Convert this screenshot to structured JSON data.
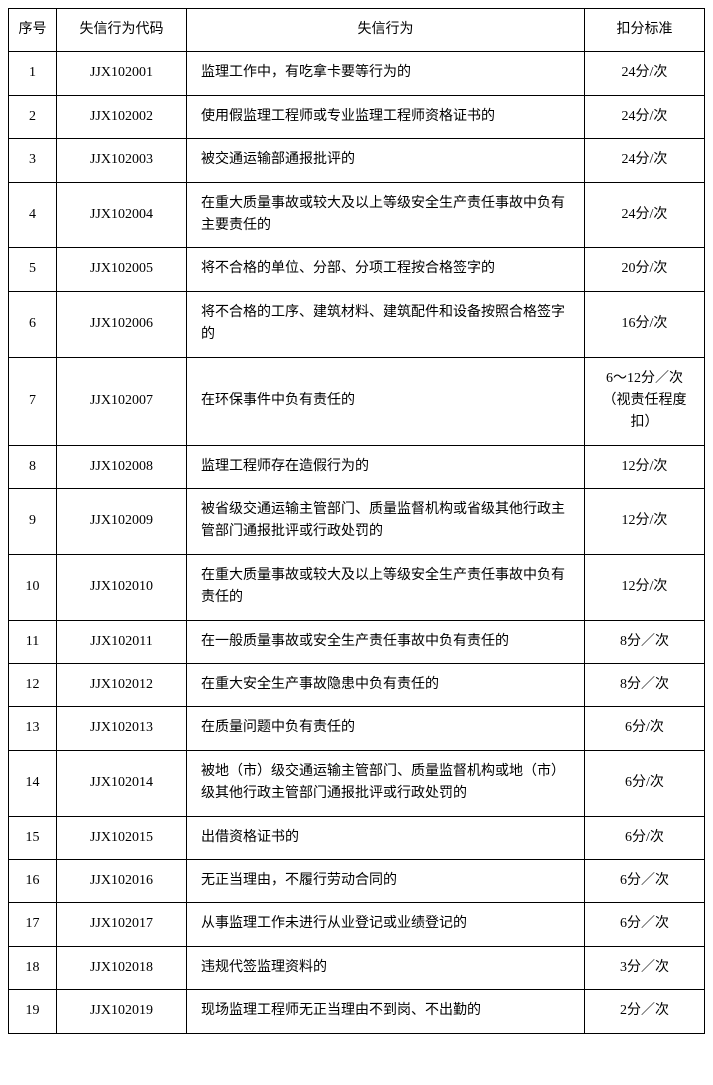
{
  "table": {
    "headers": {
      "seq": "序号",
      "code": "失信行为代码",
      "behavior": "失信行为",
      "standard": "扣分标准"
    },
    "rows": [
      {
        "seq": "1",
        "code": "JJX102001",
        "behavior": "监理工作中，有吃拿卡要等行为的",
        "standard": "24分/次"
      },
      {
        "seq": "2",
        "code": "JJX102002",
        "behavior": "使用假监理工程师或专业监理工程师资格证书的",
        "standard": "24分/次"
      },
      {
        "seq": "3",
        "code": "JJX102003",
        "behavior": "被交通运输部通报批评的",
        "standard": "24分/次"
      },
      {
        "seq": "4",
        "code": "JJX102004",
        "behavior": "在重大质量事故或较大及以上等级安全生产责任事故中负有主要责任的",
        "standard": "24分/次"
      },
      {
        "seq": "5",
        "code": "JJX102005",
        "behavior": "将不合格的单位、分部、分项工程按合格签字的",
        "standard": "20分/次"
      },
      {
        "seq": "6",
        "code": "JJX102006",
        "behavior": "将不合格的工序、建筑材料、建筑配件和设备按照合格签字的",
        "standard": "16分/次"
      },
      {
        "seq": "7",
        "code": "JJX102007",
        "behavior": "在环保事件中负有责任的",
        "standard": "6～12分／次（视责任程度扣）"
      },
      {
        "seq": "8",
        "code": "JJX102008",
        "behavior": "监理工程师存在造假行为的",
        "standard": "12分/次"
      },
      {
        "seq": "9",
        "code": "JJX102009",
        "behavior": "被省级交通运输主管部门、质量监督机构或省级其他行政主管部门通报批评或行政处罚的",
        "standard": "12分/次"
      },
      {
        "seq": "10",
        "code": "JJX102010",
        "behavior": "在重大质量事故或较大及以上等级安全生产责任事故中负有责任的",
        "standard": "12分/次"
      },
      {
        "seq": "11",
        "code": "JJX102011",
        "behavior": "在一般质量事故或安全生产责任事故中负有责任的",
        "standard": "8分／次"
      },
      {
        "seq": "12",
        "code": "JJX102012",
        "behavior": "在重大安全生产事故隐患中负有责任的",
        "standard": "8分／次"
      },
      {
        "seq": "13",
        "code": "JJX102013",
        "behavior": "在质量问题中负有责任的",
        "standard": "6分/次"
      },
      {
        "seq": "14",
        "code": "JJX102014",
        "behavior": "被地（市）级交通运输主管部门、质量监督机构或地（市）级其他行政主管部门通报批评或行政处罚的",
        "standard": "6分/次"
      },
      {
        "seq": "15",
        "code": "JJX102015",
        "behavior": "出借资格证书的",
        "standard": "6分/次"
      },
      {
        "seq": "16",
        "code": "JJX102016",
        "behavior": "无正当理由，不履行劳动合同的",
        "standard": "6分／次"
      },
      {
        "seq": "17",
        "code": "JJX102017",
        "behavior": "从事监理工作未进行从业登记或业绩登记的",
        "standard": "6分／次"
      },
      {
        "seq": "18",
        "code": "JJX102018",
        "behavior": "违规代签监理资料的",
        "standard": "3分／次"
      },
      {
        "seq": "19",
        "code": "JJX102019",
        "behavior": "现场监理工程师无正当理由不到岗、不出勤的",
        "standard": "2分／次"
      }
    ]
  }
}
